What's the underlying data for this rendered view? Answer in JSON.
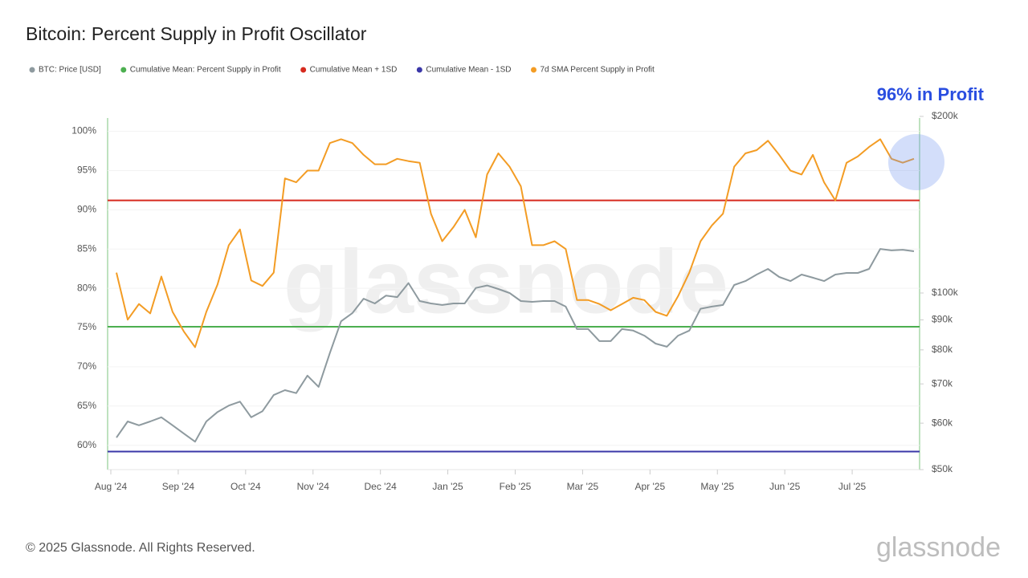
{
  "chart_data": {
    "type": "line",
    "title": "Bitcoin: Percent Supply in Profit Oscillator",
    "annotation": "96% in Profit",
    "watermark": "glassnode",
    "logo": "glassnode",
    "footer": "© 2025 Glassnode. All Rights Reserved.",
    "x": [
      "2024-08",
      "2024-08",
      "2024-08",
      "2024-08",
      "2024-08",
      "2024-08",
      "2024-09",
      "2024-09",
      "2024-09",
      "2024-09",
      "2024-09",
      "2024-09",
      "2024-10",
      "2024-10",
      "2024-10",
      "2024-10",
      "2024-10",
      "2024-10",
      "2024-11",
      "2024-11",
      "2024-11",
      "2024-11",
      "2024-11",
      "2024-11",
      "2024-12",
      "2024-12",
      "2024-12",
      "2024-12",
      "2024-12",
      "2024-12",
      "2025-01",
      "2025-01",
      "2025-01",
      "2025-01",
      "2025-01",
      "2025-01",
      "2025-02",
      "2025-02",
      "2025-02",
      "2025-02",
      "2025-02",
      "2025-02",
      "2025-03",
      "2025-03",
      "2025-03",
      "2025-03",
      "2025-03",
      "2025-03",
      "2025-04",
      "2025-04",
      "2025-04",
      "2025-04",
      "2025-04",
      "2025-04",
      "2025-05",
      "2025-05",
      "2025-05",
      "2025-05",
      "2025-05",
      "2025-05",
      "2025-06",
      "2025-06",
      "2025-06",
      "2025-06",
      "2025-06",
      "2025-06",
      "2025-07",
      "2025-07",
      "2025-07",
      "2025-07",
      "2025-07",
      "2025-07"
    ],
    "xlim": [
      "2024-08",
      "2025-07"
    ],
    "xticks": [
      {
        "value": "2024-08",
        "label": "Aug '24"
      },
      {
        "value": "2024-09",
        "label": "Sep '24"
      },
      {
        "value": "2024-10",
        "label": "Oct '24"
      },
      {
        "value": "2024-11",
        "label": "Nov '24"
      },
      {
        "value": "2024-12",
        "label": "Dec '24"
      },
      {
        "value": "2025-01",
        "label": "Jan '25"
      },
      {
        "value": "2025-02",
        "label": "Feb '25"
      },
      {
        "value": "2025-03",
        "label": "Mar '25"
      },
      {
        "value": "2025-04",
        "label": "Apr '25"
      },
      {
        "value": "2025-05",
        "label": "May '25"
      },
      {
        "value": "2025-06",
        "label": "Jun '25"
      },
      {
        "value": "2025-07",
        "label": "Jul '25"
      }
    ],
    "ylim": [
      56.9,
      101.9
    ],
    "yticks": [
      {
        "value": 60,
        "label": "60%"
      },
      {
        "value": 65,
        "label": "65%"
      },
      {
        "value": 70,
        "label": "70%"
      },
      {
        "value": 75,
        "label": "75%"
      },
      {
        "value": 80,
        "label": "80%"
      },
      {
        "value": 85,
        "label": "85%"
      },
      {
        "value": 90,
        "label": "90%"
      },
      {
        "value": 95,
        "label": "95%"
      },
      {
        "value": 100,
        "label": "100%"
      }
    ],
    "y2lim": [
      50000,
      200000
    ],
    "y2log": true,
    "y2ticks": [
      {
        "value": 50000,
        "label": "$50k"
      },
      {
        "value": 60000,
        "label": "$60k"
      },
      {
        "value": 70000,
        "label": "$70k"
      },
      {
        "value": 80000,
        "label": "$80k"
      },
      {
        "value": 90000,
        "label": "$90k"
      },
      {
        "value": 100000,
        "label": "$100k"
      },
      {
        "value": 200000,
        "label": "$200k"
      }
    ],
    "grid": true,
    "series": [
      {
        "name": "BTC: Price [USD]",
        "color": "#8e9a9f",
        "axis": "y2",
        "values": [
          56700,
          60400,
          59500,
          60400,
          61400,
          59500,
          57600,
          55800,
          60400,
          62700,
          64300,
          65300,
          61400,
          62900,
          67000,
          68300,
          67500,
          72300,
          69200,
          79000,
          89500,
          92400,
          97800,
          96000,
          99000,
          98400,
          104000,
          96900,
          96000,
          95400,
          96000,
          96000,
          102000,
          103000,
          101600,
          100000,
          96900,
          96600,
          96900,
          96900,
          94800,
          86800,
          86800,
          82800,
          82800,
          86800,
          86300,
          84600,
          82000,
          81000,
          84600,
          86300,
          94000,
          94800,
          95400,
          103200,
          104800,
          107500,
          109900,
          106500,
          104800,
          107500,
          106200,
          104800,
          107500,
          108200,
          108200,
          109900,
          118900,
          118200,
          118500,
          117800
        ]
      },
      {
        "name": "Cumulative Mean: Percent Supply in Profit",
        "color": "#4caf50",
        "value": 75.1
      },
      {
        "name": "Cumulative Mean + 1SD",
        "color": "#d62a1e",
        "value": 91.2
      },
      {
        "name": "Cumulative Mean - 1SD",
        "color": "#3a37a8",
        "value": 59.2
      },
      {
        "name": "7d SMA Percent Supply in Profit",
        "color": "#f39c24",
        "values": [
          82,
          76,
          78,
          76.8,
          81.5,
          77,
          74.5,
          72.5,
          77,
          80.5,
          85.5,
          87.5,
          81,
          80.3,
          82,
          94,
          93.5,
          95,
          95,
          98.5,
          99,
          98.5,
          97,
          95.8,
          95.8,
          96.5,
          96.2,
          96,
          89.5,
          86,
          87.8,
          90,
          86.5,
          94.5,
          97.2,
          95.5,
          93,
          85.5,
          85.5,
          86,
          85,
          78.5,
          78.5,
          78,
          77.2,
          78,
          78.8,
          78.5,
          77,
          76.5,
          79,
          82,
          86,
          88,
          89.5,
          95.5,
          97.2,
          97.6,
          98.8,
          97,
          95,
          94.5,
          97,
          93.5,
          91.2,
          96,
          96.8,
          98,
          99,
          96.5,
          96,
          96.5
        ]
      }
    ]
  }
}
